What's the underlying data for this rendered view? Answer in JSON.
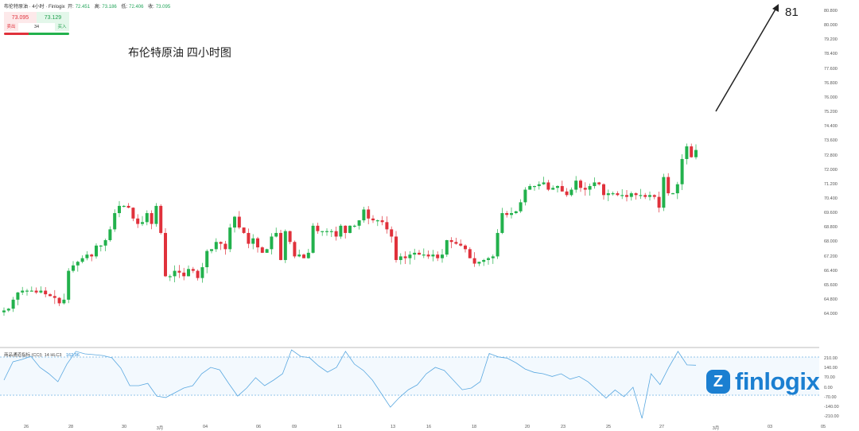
{
  "header": {
    "symbol": "布伦特原油 · 4小时 · Finlogix",
    "open_label": "开:",
    "open": "72.451",
    "high_label": "高:",
    "high": "73.186",
    "low_label": "低:",
    "low": "72.406",
    "close_label": "收:",
    "close": "73.095"
  },
  "trade": {
    "sell_price": "73.095",
    "buy_price": "73.129",
    "sell_label": "卖出",
    "buy_label": "买入",
    "spread": "34"
  },
  "title": "布伦特原油 四小时图",
  "target_label": "81",
  "indicator": {
    "name": "商品通道指标",
    "code": "(CCI)",
    "params": "14 HLC3",
    "value": "162.96"
  },
  "logo": {
    "icon": "Z",
    "text": "finlogix"
  },
  "colors": {
    "up": "#22b14c",
    "down": "#e0313b",
    "cci": "#5aa8e0"
  },
  "chart_data": {
    "type": "candlestick",
    "y_ticks": [
      "80.800",
      "80.000",
      "79.200",
      "78.400",
      "77.600",
      "76.800",
      "76.000",
      "75.200",
      "74.400",
      "73.600",
      "72.800",
      "72.000",
      "71.200",
      "70.400",
      "69.600",
      "68.800",
      "68.000",
      "67.200",
      "66.400",
      "65.600",
      "64.800",
      "64.000"
    ],
    "ylim": [
      64.0,
      80.8
    ],
    "x_ticks": [
      "26",
      "28",
      "30",
      "3月",
      "04",
      "06",
      "09",
      "11",
      "13",
      "16",
      "18",
      "20",
      "23",
      "25",
      "27",
      "3月",
      "03",
      "05"
    ],
    "closes": [
      64.2,
      64.3,
      64.8,
      65.2,
      65.3,
      65.3,
      65.3,
      65.2,
      65.3,
      65.1,
      65.0,
      64.9,
      64.6,
      64.8,
      66.4,
      66.7,
      66.9,
      67.1,
      67.3,
      67.2,
      67.8,
      67.8,
      68.1,
      68.7,
      69.6,
      70.0,
      70.0,
      69.9,
      69.3,
      69.0,
      69.1,
      69.6,
      69.0,
      70.0,
      68.5,
      66.1,
      66.1,
      66.4,
      66.3,
      66.1,
      66.5,
      66.4,
      66.0,
      66.6,
      67.5,
      67.6,
      68.0,
      67.9,
      67.6,
      68.8,
      69.4,
      68.8,
      68.5,
      67.9,
      68.2,
      67.7,
      67.4,
      67.6,
      68.3,
      68.5,
      67.0,
      68.6,
      68.0,
      67.2,
      67.3,
      67.1,
      67.4,
      68.9,
      68.6,
      68.6,
      68.6,
      68.6,
      68.3,
      68.9,
      68.5,
      68.9,
      68.9,
      69.2,
      69.8,
      69.3,
      69.2,
      69.2,
      69.1,
      68.7,
      68.3,
      67.0,
      67.2,
      67.1,
      67.3,
      67.4,
      67.3,
      67.3,
      67.2,
      67.3,
      67.1,
      67.3,
      68.1,
      68.0,
      67.9,
      67.8,
      67.6,
      67.1,
      66.8,
      66.9,
      67.0,
      67.1,
      67.2,
      68.5,
      69.6,
      69.5,
      69.6,
      69.7,
      70.2,
      70.9,
      71.1,
      71.1,
      71.2,
      71.3,
      70.9,
      71.0,
      71.1,
      70.8,
      70.6,
      70.9,
      71.4,
      71.0,
      70.9,
      71.1,
      71.3,
      71.2,
      70.6,
      70.7,
      70.7,
      70.6,
      70.6,
      70.5,
      70.7,
      70.6,
      70.6,
      70.5,
      70.6,
      70.5,
      69.9,
      71.6,
      70.7,
      70.7,
      71.2,
      72.6,
      73.3,
      72.7,
      73.1
    ],
    "cci_ticks": [
      "210.00",
      "140.00",
      "70.00",
      "0.00",
      "-70.00",
      "-140.00",
      "-210.00"
    ],
    "cci": [
      53,
      188,
      206,
      229,
      147,
      100,
      41,
      171,
      265,
      247,
      241,
      235,
      218,
      141,
      12,
      12,
      29,
      -65,
      -76,
      -41,
      -6,
      12,
      100,
      147,
      129,
      29,
      -65,
      -6,
      71,
      12,
      53,
      100,
      288,
      229,
      218,
      159,
      112,
      147,
      265,
      171,
      124,
      53,
      -47,
      -147,
      -76,
      -18,
      18,
      100,
      147,
      124,
      53,
      -18,
      -6,
      41,
      250,
      225,
      215,
      180,
      135,
      110,
      100,
      80,
      100,
      60,
      80,
      40,
      -20,
      -80,
      -20,
      -70,
      0,
      -230,
      100,
      20,
      150,
      265,
      165,
      163
    ],
    "target": 81
  }
}
